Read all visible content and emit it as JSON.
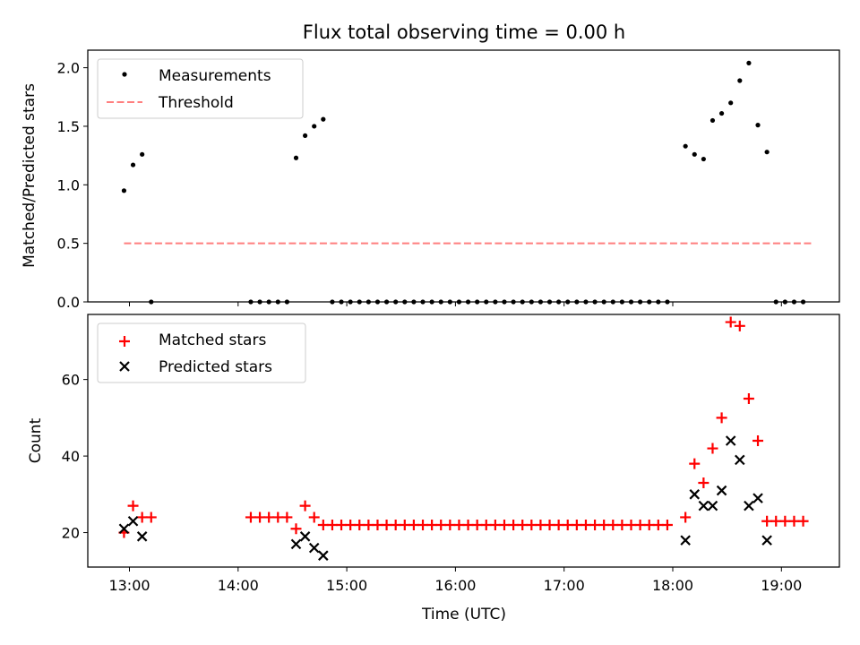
{
  "chart_data": [
    {
      "type": "scatter",
      "title": "Flux total observing time = 0.00 h",
      "xlabel": "",
      "ylabel": "Matched/Predicted stars",
      "xlim": [
        "12:37",
        "19:32"
      ],
      "ylim": [
        0,
        2.15
      ],
      "yticks": [
        0.0,
        0.5,
        1.0,
        1.5,
        2.0
      ],
      "ytick_labels": [
        "0.0",
        "0.5",
        "1.0",
        "1.5",
        "2.0"
      ],
      "grid": false,
      "legend_position": "top-left",
      "series": [
        {
          "name": "Measurements",
          "marker": "dot",
          "color": "#000000",
          "points": [
            [
              "12:57",
              0.95
            ],
            [
              "13:02",
              1.17
            ],
            [
              "13:07",
              1.26
            ],
            [
              "13:12",
              0.0
            ],
            [
              "14:07",
              0.0
            ],
            [
              "14:12",
              0.0
            ],
            [
              "14:17",
              0.0
            ],
            [
              "14:22",
              0.0
            ],
            [
              "14:27",
              0.0
            ],
            [
              "14:32",
              1.23
            ],
            [
              "14:37",
              1.42
            ],
            [
              "14:42",
              1.5
            ],
            [
              "14:47",
              1.56
            ],
            [
              "14:52",
              0.0
            ],
            [
              "14:57",
              0.0
            ],
            [
              "15:02",
              0.0
            ],
            [
              "15:07",
              0.0
            ],
            [
              "15:12",
              0.0
            ],
            [
              "15:17",
              0.0
            ],
            [
              "15:22",
              0.0
            ],
            [
              "15:27",
              0.0
            ],
            [
              "15:32",
              0.0
            ],
            [
              "15:37",
              0.0
            ],
            [
              "15:42",
              0.0
            ],
            [
              "15:47",
              0.0
            ],
            [
              "15:52",
              0.0
            ],
            [
              "15:57",
              0.0
            ],
            [
              "16:02",
              0.0
            ],
            [
              "16:07",
              0.0
            ],
            [
              "16:12",
              0.0
            ],
            [
              "16:17",
              0.0
            ],
            [
              "16:22",
              0.0
            ],
            [
              "16:27",
              0.0
            ],
            [
              "16:32",
              0.0
            ],
            [
              "16:37",
              0.0
            ],
            [
              "16:42",
              0.0
            ],
            [
              "16:47",
              0.0
            ],
            [
              "16:52",
              0.0
            ],
            [
              "16:57",
              0.0
            ],
            [
              "17:02",
              0.0
            ],
            [
              "17:07",
              0.0
            ],
            [
              "17:12",
              0.0
            ],
            [
              "17:17",
              0.0
            ],
            [
              "17:22",
              0.0
            ],
            [
              "17:27",
              0.0
            ],
            [
              "17:32",
              0.0
            ],
            [
              "17:37",
              0.0
            ],
            [
              "17:42",
              0.0
            ],
            [
              "17:47",
              0.0
            ],
            [
              "17:52",
              0.0
            ],
            [
              "17:57",
              0.0
            ],
            [
              "18:07",
              1.33
            ],
            [
              "18:12",
              1.26
            ],
            [
              "18:17",
              1.22
            ],
            [
              "18:22",
              1.55
            ],
            [
              "18:27",
              1.61
            ],
            [
              "18:32",
              1.7
            ],
            [
              "18:37",
              1.89
            ],
            [
              "18:42",
              2.04
            ],
            [
              "18:47",
              1.51
            ],
            [
              "18:52",
              1.28
            ],
            [
              "18:57",
              0.0
            ],
            [
              "19:02",
              0.0
            ],
            [
              "19:07",
              0.0
            ],
            [
              "19:12",
              0.0
            ]
          ]
        },
        {
          "name": "Threshold",
          "type": "line",
          "style": "dashed",
          "color": "#ff7f7f",
          "points": [
            [
              "12:57",
              0.5
            ],
            [
              "19:17",
              0.5
            ]
          ]
        }
      ]
    },
    {
      "type": "scatter",
      "title": "",
      "xlabel": "Time (UTC)",
      "ylabel": "Count",
      "xlim": [
        "12:37",
        "19:32"
      ],
      "ylim": [
        11,
        77
      ],
      "yticks": [
        20,
        40,
        60
      ],
      "ytick_labels": [
        "20",
        "40",
        "60"
      ],
      "xticks": [
        "13:00",
        "14:00",
        "15:00",
        "16:00",
        "17:00",
        "18:00",
        "19:00"
      ],
      "xtick_labels": [
        "13:00",
        "14:00",
        "15:00",
        "16:00",
        "17:00",
        "18:00",
        "19:00"
      ],
      "grid": false,
      "legend_position": "top-left",
      "series": [
        {
          "name": "Matched stars",
          "marker": "plus",
          "color": "#ff0000",
          "points": [
            [
              "12:57",
              20
            ],
            [
              "13:02",
              27
            ],
            [
              "13:07",
              24
            ],
            [
              "13:12",
              24
            ],
            [
              "14:07",
              24
            ],
            [
              "14:12",
              24
            ],
            [
              "14:17",
              24
            ],
            [
              "14:22",
              24
            ],
            [
              "14:27",
              24
            ],
            [
              "14:32",
              21
            ],
            [
              "14:37",
              27
            ],
            [
              "14:42",
              24
            ],
            [
              "14:47",
              22
            ],
            [
              "14:52",
              22
            ],
            [
              "14:57",
              22
            ],
            [
              "15:02",
              22
            ],
            [
              "15:07",
              22
            ],
            [
              "15:12",
              22
            ],
            [
              "15:17",
              22
            ],
            [
              "15:22",
              22
            ],
            [
              "15:27",
              22
            ],
            [
              "15:32",
              22
            ],
            [
              "15:37",
              22
            ],
            [
              "15:42",
              22
            ],
            [
              "15:47",
              22
            ],
            [
              "15:52",
              22
            ],
            [
              "15:57",
              22
            ],
            [
              "16:02",
              22
            ],
            [
              "16:07",
              22
            ],
            [
              "16:12",
              22
            ],
            [
              "16:17",
              22
            ],
            [
              "16:22",
              22
            ],
            [
              "16:27",
              22
            ],
            [
              "16:32",
              22
            ],
            [
              "16:37",
              22
            ],
            [
              "16:42",
              22
            ],
            [
              "16:47",
              22
            ],
            [
              "16:52",
              22
            ],
            [
              "16:57",
              22
            ],
            [
              "17:02",
              22
            ],
            [
              "17:07",
              22
            ],
            [
              "17:12",
              22
            ],
            [
              "17:17",
              22
            ],
            [
              "17:22",
              22
            ],
            [
              "17:27",
              22
            ],
            [
              "17:32",
              22
            ],
            [
              "17:37",
              22
            ],
            [
              "17:42",
              22
            ],
            [
              "17:47",
              22
            ],
            [
              "17:52",
              22
            ],
            [
              "17:57",
              22
            ],
            [
              "18:07",
              24
            ],
            [
              "18:12",
              38
            ],
            [
              "18:17",
              33
            ],
            [
              "18:22",
              42
            ],
            [
              "18:27",
              50
            ],
            [
              "18:32",
              75
            ],
            [
              "18:37",
              74
            ],
            [
              "18:42",
              55
            ],
            [
              "18:47",
              44
            ],
            [
              "18:52",
              23
            ],
            [
              "18:57",
              23
            ],
            [
              "19:02",
              23
            ],
            [
              "19:07",
              23
            ],
            [
              "19:12",
              23
            ]
          ]
        },
        {
          "name": "Predicted stars",
          "marker": "x",
          "color": "#000000",
          "points": [
            [
              "12:57",
              21
            ],
            [
              "13:02",
              23
            ],
            [
              "13:07",
              19
            ],
            [
              "14:32",
              17
            ],
            [
              "14:37",
              19
            ],
            [
              "14:42",
              16
            ],
            [
              "14:47",
              14
            ],
            [
              "18:07",
              18
            ],
            [
              "18:12",
              30
            ],
            [
              "18:17",
              27
            ],
            [
              "18:22",
              27
            ],
            [
              "18:27",
              31
            ],
            [
              "18:32",
              44
            ],
            [
              "18:37",
              39
            ],
            [
              "18:42",
              27
            ],
            [
              "18:47",
              29
            ],
            [
              "18:52",
              18
            ]
          ]
        }
      ]
    }
  ]
}
